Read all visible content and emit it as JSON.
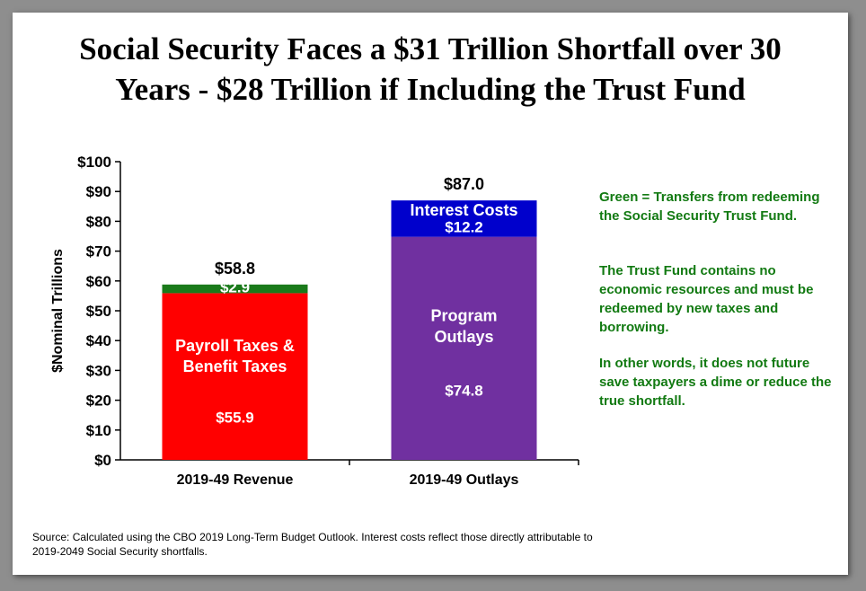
{
  "title_lines": [
    "Social Security Faces a $31 Trillion Shortfall over 30",
    "Years - $28 Trillion if Including the Trust Fund"
  ],
  "colors": {
    "payroll": "#ff0000",
    "trust": "#1a7a1a",
    "program": "#7030a0",
    "interest": "#0000cc",
    "note_text": "#127a12"
  },
  "chart_data": {
    "type": "bar",
    "stacked": true,
    "categories": [
      "2019-49 Revenue",
      "2019-49 Outlays"
    ],
    "ylabel": "$Nominal Trillions",
    "ylim": [
      0,
      100
    ],
    "ytick_labels": [
      "$0",
      "$10",
      "$20",
      "$30",
      "$40",
      "$50",
      "$60",
      "$70",
      "$80",
      "$90",
      "$100"
    ],
    "totals": [
      "$58.8",
      "$87.0"
    ],
    "series": [
      {
        "name": "Payroll Taxes & Benefit Taxes",
        "stack": 0,
        "values": [
          55.9,
          null
        ],
        "label": "$55.9",
        "color": "#ff0000"
      },
      {
        "name": "",
        "stack": 0,
        "values": [
          2.9,
          null
        ],
        "label": "$2.9",
        "color": "#1a7a1a"
      },
      {
        "name": "Program Outlays",
        "stack": 1,
        "values": [
          null,
          74.8
        ],
        "label": "$74.8",
        "color": "#7030a0"
      },
      {
        "name": "Interest Costs",
        "stack": 1,
        "values": [
          null,
          12.2
        ],
        "label": "$12.2",
        "color": "#0000cc"
      }
    ],
    "inner_labels": {
      "payroll_lines": [
        "Payroll Taxes &",
        "Benefit Taxes"
      ],
      "program_lines": [
        "Program",
        "Outlays"
      ],
      "interest": "Interest Costs"
    },
    "grid": false
  },
  "notes": [
    "Green = Transfers from redeeming the Social Security Trust Fund.",
    "The Trust Fund contains no economic resources and must be redeemed by new taxes and borrowing.",
    "In other words, it does not future save taxpayers a dime or reduce the true shortfall."
  ],
  "source": "Source: Calculated using the CBO 2019 Long-Term Budget Outlook. Interest costs reflect those directly attributable to 2019-2049 Social Security shortfalls."
}
